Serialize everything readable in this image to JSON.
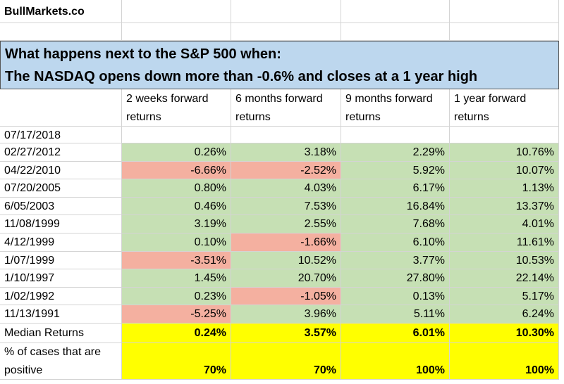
{
  "header": {
    "site": "BullMarkets.co"
  },
  "title": {
    "lines": [
      "What happens next to the S&P 500 when:",
      "The NASDAQ opens down more than -0.6% and closes at a 1 year high"
    ]
  },
  "table": {
    "columns": [
      "2 weeks forward returns",
      "6 months forward returns",
      "9 months forward returns",
      "1 year forward returns"
    ],
    "rows": [
      {
        "date": "07/17/2018",
        "cells": []
      },
      {
        "date": "02/27/2012",
        "cells": [
          "0.26%",
          "3.18%",
          "2.29%",
          "10.76%"
        ]
      },
      {
        "date": "04/22/2010",
        "cells": [
          "-6.66%",
          "-2.52%",
          "5.92%",
          "10.07%"
        ]
      },
      {
        "date": "07/20/2005",
        "cells": [
          "0.80%",
          "4.03%",
          "6.17%",
          "1.13%"
        ]
      },
      {
        "date": "6/05/2003",
        "cells": [
          "0.46%",
          "7.53%",
          "16.84%",
          "13.37%"
        ]
      },
      {
        "date": "11/08/1999",
        "cells": [
          "3.19%",
          "2.55%",
          "7.68%",
          "4.01%"
        ]
      },
      {
        "date": "4/12/1999",
        "cells": [
          "0.10%",
          "-1.66%",
          "6.10%",
          "11.61%"
        ]
      },
      {
        "date": "1/07/1999",
        "cells": [
          "-3.51%",
          "10.52%",
          "3.77%",
          "10.53%"
        ]
      },
      {
        "date": "1/10/1997",
        "cells": [
          "1.45%",
          "20.70%",
          "27.80%",
          "22.14%"
        ]
      },
      {
        "date": "1/02/1992",
        "cells": [
          "0.23%",
          "-1.05%",
          "0.13%",
          "5.17%"
        ]
      },
      {
        "date": "11/13/1991",
        "cells": [
          "-5.25%",
          "3.96%",
          "5.11%",
          "6.24%"
        ]
      }
    ]
  },
  "summary": {
    "median": {
      "label": "Median Returns",
      "cells": [
        "0.24%",
        "3.57%",
        "6.01%",
        "10.30%"
      ]
    },
    "positive": {
      "label": "% of cases that are positive",
      "cells": [
        "70%",
        "70%",
        "100%",
        "100%"
      ]
    }
  }
}
